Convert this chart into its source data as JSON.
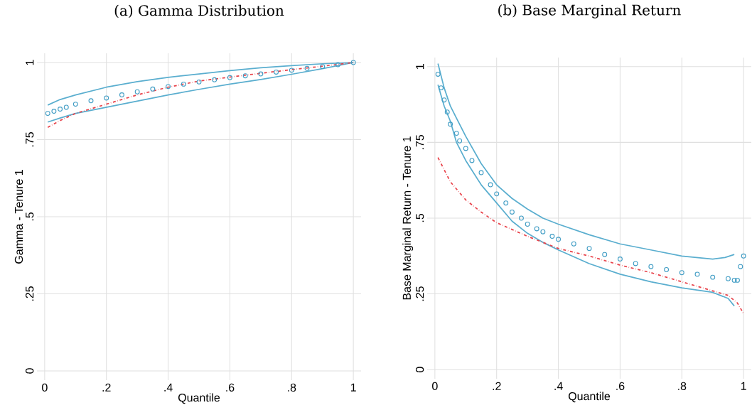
{
  "chart_data": [
    {
      "type": "line",
      "title": "(a) Gamma Distribution",
      "xlabel": "Quantile",
      "ylabel": "Gamma - Tenure 1",
      "xlim": [
        -0.025,
        1.025
      ],
      "ylim": [
        -0.03,
        1.03
      ],
      "xticks": [
        0,
        {
          "value": 0.2,
          "label": ".2"
        },
        {
          "value": 0.4,
          "label": ".4"
        },
        {
          "value": 0.6,
          "label": ".6"
        },
        {
          "value": 0.8,
          "label": ".8"
        },
        1
      ],
      "yticks": [
        0,
        {
          "value": 0.25,
          "label": ".25"
        },
        {
          "value": 0.5,
          "label": ".5"
        },
        {
          "value": 0.75,
          "label": ".75"
        },
        1
      ],
      "grid": true,
      "series": [
        {
          "color": "#5aaecf",
          "line_style": "solid",
          "marker": "none",
          "x": [
            0.01,
            0.05,
            0.1,
            0.2,
            0.3,
            0.4,
            0.5,
            0.6,
            0.7,
            0.8,
            0.9,
            1.0
          ],
          "values": [
            0.862,
            0.88,
            0.895,
            0.92,
            0.938,
            0.952,
            0.963,
            0.974,
            0.983,
            0.99,
            0.996,
            1.0
          ]
        },
        {
          "color": "#5aaecf",
          "line_style": "solid",
          "marker": "none",
          "x": [
            0.01,
            0.05,
            0.1,
            0.2,
            0.3,
            0.4,
            0.5,
            0.6,
            0.7,
            0.8,
            0.9,
            1.0
          ],
          "values": [
            0.807,
            0.82,
            0.835,
            0.855,
            0.875,
            0.895,
            0.913,
            0.93,
            0.945,
            0.962,
            0.98,
            1.0
          ]
        },
        {
          "color": "#e8424a",
          "line_style": "dashed",
          "marker": "none",
          "x": [
            0.01,
            0.05,
            0.1,
            0.2,
            0.3,
            0.4,
            0.5,
            0.6,
            0.7,
            0.8,
            0.9,
            1.0
          ],
          "values": [
            0.79,
            0.812,
            0.835,
            0.865,
            0.895,
            0.92,
            0.94,
            0.953,
            0.965,
            0.977,
            0.988,
            1.0
          ]
        },
        {
          "type": "scatter",
          "color": "#3f9cc4",
          "marker": "circle",
          "x": [
            0.01,
            0.03,
            0.05,
            0.07,
            0.1,
            0.15,
            0.2,
            0.25,
            0.3,
            0.35,
            0.4,
            0.45,
            0.5,
            0.55,
            0.6,
            0.65,
            0.7,
            0.75,
            0.8,
            0.85,
            0.9,
            0.95,
            1.0
          ],
          "values": [
            0.835,
            0.842,
            0.849,
            0.855,
            0.865,
            0.876,
            0.885,
            0.895,
            0.905,
            0.914,
            0.922,
            0.93,
            0.937,
            0.944,
            0.951,
            0.957,
            0.963,
            0.969,
            0.975,
            0.981,
            0.987,
            0.993,
            1.0
          ]
        }
      ]
    },
    {
      "type": "line",
      "title": "(b) Base Marginal Return",
      "xlabel": "Quantile",
      "ylabel": "Base Marginal Return - Tenure 1",
      "xlim": [
        -0.025,
        1.025
      ],
      "ylim": [
        -0.03,
        1.03
      ],
      "xticks": [
        0,
        {
          "value": 0.2,
          "label": ".2"
        },
        {
          "value": 0.4,
          "label": ".4"
        },
        {
          "value": 0.6,
          "label": ".6"
        },
        {
          "value": 0.8,
          "label": ".8"
        },
        1
      ],
      "yticks": [
        0,
        {
          "value": 0.25,
          "label": ".25"
        },
        {
          "value": 0.5,
          "label": ".5"
        },
        {
          "value": 0.75,
          "label": ".75"
        },
        1
      ],
      "grid": true,
      "series": [
        {
          "color": "#5aaecf",
          "line_style": "solid",
          "marker": "none",
          "x": [
            0.01,
            0.03,
            0.05,
            0.07,
            0.1,
            0.15,
            0.2,
            0.25,
            0.3,
            0.35,
            0.4,
            0.5,
            0.6,
            0.7,
            0.8,
            0.9,
            0.94,
            0.97
          ],
          "values": [
            1.01,
            0.93,
            0.87,
            0.83,
            0.77,
            0.68,
            0.61,
            0.565,
            0.53,
            0.5,
            0.48,
            0.445,
            0.415,
            0.395,
            0.375,
            0.365,
            0.37,
            0.38
          ]
        },
        {
          "color": "#5aaecf",
          "line_style": "solid",
          "marker": "none",
          "x": [
            0.01,
            0.03,
            0.05,
            0.07,
            0.1,
            0.15,
            0.2,
            0.25,
            0.3,
            0.35,
            0.4,
            0.5,
            0.6,
            0.7,
            0.8,
            0.9,
            0.95,
            0.97
          ],
          "values": [
            0.94,
            0.87,
            0.82,
            0.75,
            0.69,
            0.61,
            0.55,
            0.49,
            0.45,
            0.42,
            0.395,
            0.35,
            0.315,
            0.29,
            0.27,
            0.255,
            0.235,
            0.21
          ]
        },
        {
          "color": "#e8424a",
          "line_style": "dashed",
          "marker": "none",
          "x": [
            0.01,
            0.05,
            0.1,
            0.15,
            0.2,
            0.3,
            0.4,
            0.5,
            0.6,
            0.7,
            0.8,
            0.9,
            0.95,
            0.98,
            1.0
          ],
          "values": [
            0.7,
            0.62,
            0.56,
            0.52,
            0.485,
            0.44,
            0.4,
            0.375,
            0.345,
            0.32,
            0.29,
            0.26,
            0.245,
            0.22,
            0.185
          ]
        },
        {
          "type": "scatter",
          "color": "#3f9cc4",
          "marker": "circle",
          "x": [
            0.01,
            0.02,
            0.03,
            0.04,
            0.05,
            0.07,
            0.08,
            0.1,
            0.12,
            0.15,
            0.18,
            0.2,
            0.23,
            0.25,
            0.28,
            0.3,
            0.33,
            0.35,
            0.38,
            0.4,
            0.45,
            0.5,
            0.55,
            0.6,
            0.65,
            0.7,
            0.75,
            0.8,
            0.85,
            0.9,
            0.95,
            0.97,
            0.98,
            0.99,
            1.0
          ],
          "values": [
            0.975,
            0.93,
            0.89,
            0.85,
            0.81,
            0.78,
            0.755,
            0.73,
            0.69,
            0.65,
            0.61,
            0.58,
            0.55,
            0.52,
            0.5,
            0.48,
            0.465,
            0.455,
            0.44,
            0.43,
            0.415,
            0.4,
            0.38,
            0.365,
            0.35,
            0.34,
            0.33,
            0.32,
            0.315,
            0.305,
            0.3,
            0.295,
            0.295,
            0.34,
            0.375
          ]
        }
      ]
    }
  ]
}
